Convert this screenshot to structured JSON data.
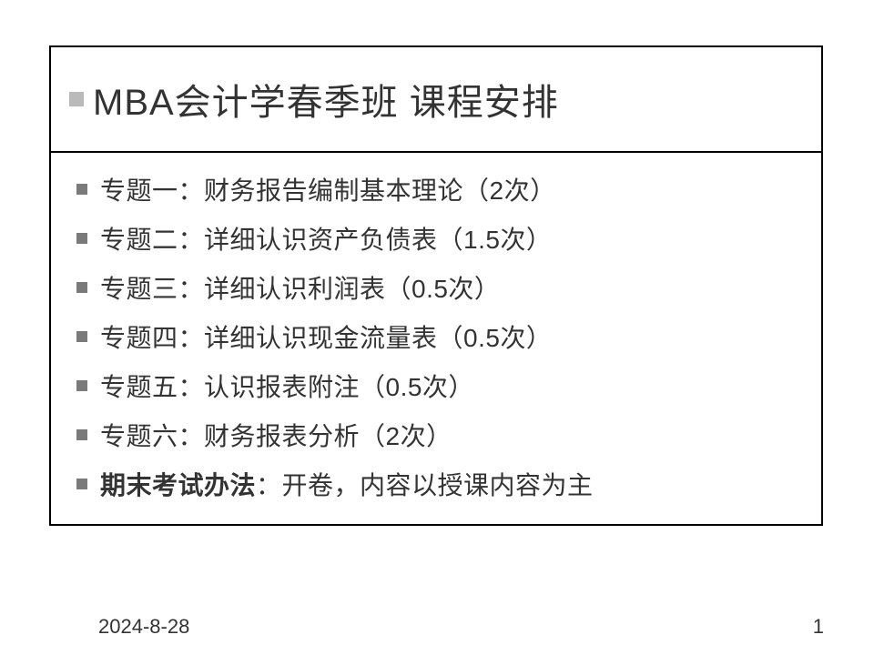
{
  "slide": {
    "title": "MBA会计学春季班  课程安排",
    "title_bullet_color": "#bababa",
    "title_fontsize": 40,
    "border_color": "#000000",
    "bullet_color": "#7a7a7a",
    "bullet_fontsize": 28,
    "background_color": "#ffffff",
    "items": [
      {
        "text": "专题一：财务报告编制基本理论（2次）",
        "bold": false
      },
      {
        "text": "专题二：详细认识资产负债表（1.5次）",
        "bold": false
      },
      {
        "text": "专题三：详细认识利润表（0.5次）",
        "bold": false
      },
      {
        "text": "专题四：详细认识现金流量表（0.5次）",
        "bold": false
      },
      {
        "text": "专题五：认识报表附注（0.5次）",
        "bold": false
      },
      {
        "text": "专题六：财务报表分析（2次）",
        "bold": false
      },
      {
        "prefix": "期末考试办法",
        "suffix": "：开卷，内容以授课内容为主",
        "bold": true
      }
    ]
  },
  "footer": {
    "date": "2024-8-28",
    "page": "1",
    "fontsize": 22
  }
}
